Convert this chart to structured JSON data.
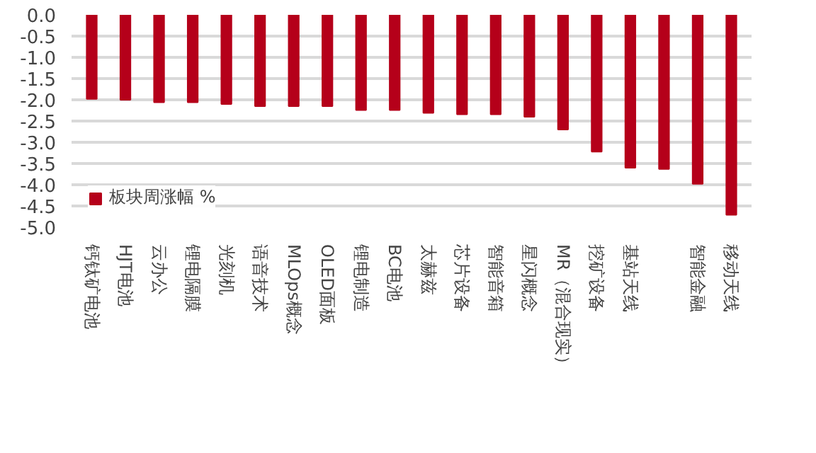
{
  "chart_data": {
    "type": "bar",
    "categories": [
      "钙钛矿电池",
      "HJT电池",
      "云办公",
      "锂电隔膜",
      "光刻机",
      "语音技术",
      "MLOps概念",
      "OLED面板",
      "锂电制造",
      "BC电池",
      "太赫兹",
      "芯片设备",
      "智能音箱",
      "星闪概念",
      "MR（混合现实）",
      "挖矿设备",
      "基站天线",
      null,
      "智能金融",
      "移动天线"
    ],
    "series": [
      {
        "name": "板块周涨幅 %",
        "color": "#b5001a",
        "values": [
          -1.98,
          -2.0,
          -2.06,
          -2.06,
          -2.1,
          -2.15,
          -2.15,
          -2.15,
          -2.24,
          -2.24,
          -2.31,
          -2.34,
          -2.34,
          -2.4,
          -2.7,
          -3.22,
          -3.6,
          -3.63,
          -3.98,
          -4.71
        ]
      }
    ],
    "ylim": [
      -5.0,
      0.0
    ],
    "yticks": [
      {
        "value": 0,
        "label": "0.0"
      },
      {
        "value": -0.5,
        "label": "-0.5"
      },
      {
        "value": -1,
        "label": "-1.0"
      },
      {
        "value": -1.5,
        "label": "-1.5"
      },
      {
        "value": -2,
        "label": "-2.0"
      },
      {
        "value": -2.5,
        "label": "-2.5"
      },
      {
        "value": -3,
        "label": "-3.0"
      },
      {
        "value": -3.5,
        "label": "-3.5"
      },
      {
        "value": -4,
        "label": "-4.0"
      },
      {
        "value": -4.5,
        "label": "-4.5"
      },
      {
        "value": -5,
        "label": "-5.0"
      }
    ],
    "grid": "y",
    "legend": "bottom left"
  }
}
